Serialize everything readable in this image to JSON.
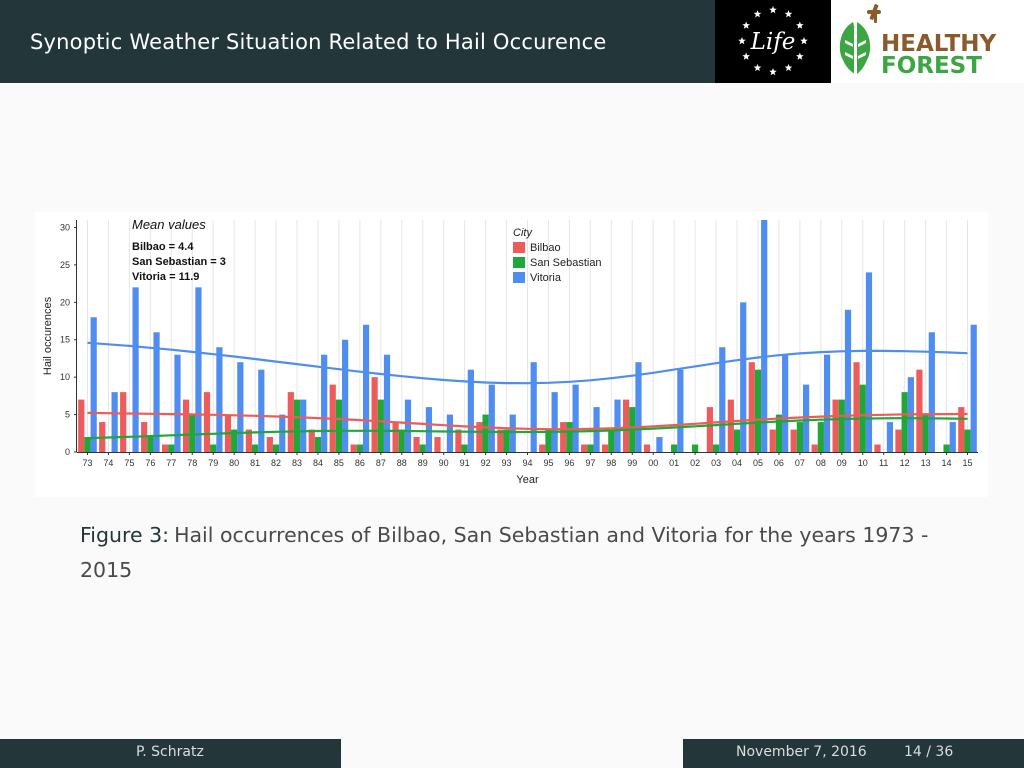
{
  "slide": {
    "title": "Synoptic Weather Situation Related to Hail Occurence",
    "caption_label": "Figure 3:",
    "caption_text": "Hail occurrences of Bilbao, San Sebastian and Vitoria for the years 1973 - 2015",
    "author": "P. Schratz",
    "date": "November 7, 2016",
    "page": "14 / 36"
  },
  "logos": {
    "life": "Life",
    "healthy_forest_line1": "HEALTHY",
    "healthy_forest_line2": "FOREST"
  },
  "colors": {
    "header_bg": "#23373b",
    "bilbao": "#ee5b5b",
    "san_sebastian": "#1fa838",
    "vitoria": "#4f8df0",
    "forest_green": "#3ba642",
    "forest_brown": "#8b5a2b"
  },
  "chart_data": {
    "type": "bar",
    "xlabel": "Year",
    "ylabel": "Hail occurences",
    "ylim": [
      0,
      31
    ],
    "yticks": [
      0,
      5,
      10,
      15,
      20,
      25,
      30
    ],
    "ytick_labels": [
      "0",
      "5",
      "10",
      "15",
      "20",
      "25",
      "30"
    ],
    "categories": [
      "73",
      "74",
      "75",
      "76",
      "77",
      "78",
      "79",
      "80",
      "81",
      "82",
      "83",
      "84",
      "85",
      "86",
      "87",
      "88",
      "89",
      "90",
      "91",
      "92",
      "93",
      "94",
      "95",
      "96",
      "97",
      "98",
      "99",
      "00",
      "01",
      "02",
      "03",
      "04",
      "05",
      "06",
      "07",
      "08",
      "09",
      "10",
      "11",
      "12",
      "13",
      "14",
      "15"
    ],
    "series": [
      {
        "name": "Bilbao",
        "values": [
          7,
          4,
          8,
          4,
          1,
          7,
          8,
          5,
          3,
          2,
          8,
          3,
          9,
          1,
          10,
          4,
          2,
          2,
          3,
          4,
          3,
          0,
          1,
          4,
          1,
          1,
          7,
          1,
          0,
          0,
          6,
          7,
          12,
          3,
          3,
          1,
          7,
          12,
          1,
          3,
          11,
          0,
          6
        ]
      },
      {
        "name": "San Sebastian",
        "values": [
          2,
          0,
          0,
          2,
          1,
          5,
          1,
          3,
          1,
          1,
          7,
          2,
          7,
          1,
          7,
          3,
          1,
          0,
          1,
          5,
          3,
          0,
          3,
          4,
          1,
          3,
          6,
          0,
          1,
          1,
          1,
          3,
          11,
          5,
          4,
          4,
          7,
          9,
          0,
          8,
          5,
          1,
          3
        ]
      },
      {
        "name": "Vitoria",
        "values": [
          18,
          8,
          22,
          16,
          13,
          22,
          14,
          12,
          11,
          5,
          7,
          13,
          15,
          17,
          13,
          7,
          6,
          5,
          11,
          9,
          5,
          12,
          8,
          9,
          6,
          7,
          12,
          2,
          11,
          0,
          14,
          20,
          31,
          13,
          9,
          13,
          19,
          24,
          4,
          10,
          16,
          4,
          17
        ]
      }
    ],
    "legend_title": "City",
    "legend_position": "top-center",
    "annotation": {
      "title": "Mean values",
      "lines": [
        "Bilbao = 4.4",
        "San Sebastian = 3",
        "Vitoria = 11.9"
      ]
    },
    "trend_lines": true,
    "grid": true
  }
}
